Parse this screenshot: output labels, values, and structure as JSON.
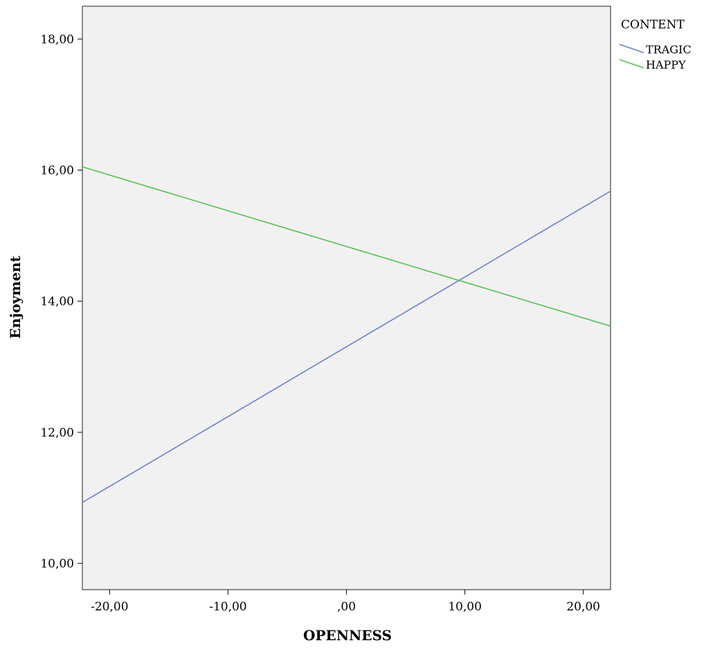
{
  "chart_data": {
    "type": "line",
    "title": "",
    "xlabel": "OPENNESS",
    "ylabel": "Enjoyment",
    "xlim": [
      -22.3,
      22.3
    ],
    "ylim": [
      9.6,
      18.5
    ],
    "x_ticks": [
      -20,
      -10,
      0,
      10,
      20
    ],
    "x_tick_labels": [
      "-20,00",
      "-10,00",
      ",00",
      "10,00",
      "20,00"
    ],
    "y_ticks": [
      10,
      12,
      14,
      16,
      18
    ],
    "y_tick_labels": [
      "10,00",
      "12,00",
      "14,00",
      "16,00",
      "18,00"
    ],
    "grid": false,
    "legend_title": "CONTENT",
    "legend_position": "right-top outside",
    "plot_background": "#f1f1f1",
    "series": [
      {
        "name": "TRAGIC",
        "color": "#6a80c8",
        "x": [
          -22.3,
          22.3
        ],
        "y": [
          10.93,
          15.68
        ]
      },
      {
        "name": "HAPPY",
        "color": "#52c252",
        "x": [
          -22.3,
          22.3
        ],
        "y": [
          16.05,
          13.62
        ]
      }
    ]
  }
}
